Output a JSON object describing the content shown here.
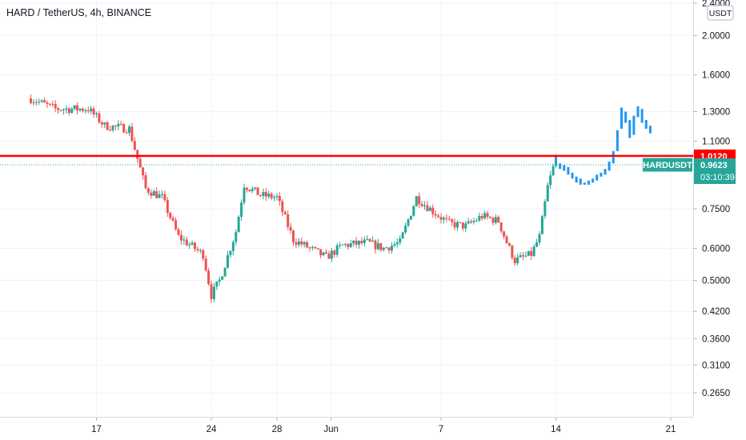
{
  "header": {
    "title": "HARD / TetherUS, 4h, BINANCE"
  },
  "colors": {
    "up": "#26a69a",
    "down": "#ef5350",
    "projection": "#2196f3",
    "line": "#ff0000",
    "grid": "#f0f3fa"
  },
  "chart_data": {
    "type": "candlestick",
    "symbol": "HARDUSDT",
    "currency": "USDT",
    "y_scale": "log",
    "ylim": [
      0.24,
      2.45
    ],
    "y_ticks": [
      {
        "value": 2.4,
        "label": "2.4000"
      },
      {
        "value": 2.0,
        "label": "2.0000"
      },
      {
        "value": 1.6,
        "label": "1.6000"
      },
      {
        "value": 1.3,
        "label": "1.3000"
      },
      {
        "value": 1.1,
        "label": "1.1000"
      },
      {
        "value": 0.75,
        "label": "0.7500"
      },
      {
        "value": 0.6,
        "label": "0.6000"
      },
      {
        "value": 0.5,
        "label": "0.5000"
      },
      {
        "value": 0.42,
        "label": "0.4200"
      },
      {
        "value": 0.36,
        "label": "0.3600"
      },
      {
        "value": 0.31,
        "label": "0.3100"
      },
      {
        "value": 0.265,
        "label": "0.2650"
      }
    ],
    "x_ticks": [
      "17",
      "24",
      "28",
      "Jun",
      "7",
      "14",
      "21"
    ],
    "horizontal_line": {
      "value": 1.012,
      "label": "1.0120"
    },
    "last_price": {
      "value": 0.9623,
      "label": "0.9623",
      "symbol_label": "HARDUSDT",
      "countdown": "03:10:39"
    },
    "anchors": [
      {
        "day": 13.0,
        "price": 1.4
      },
      {
        "day": 14.5,
        "price": 1.32
      },
      {
        "day": 16.5,
        "price": 1.32
      },
      {
        "day": 17.5,
        "price": 1.2
      },
      {
        "day": 19.0,
        "price": 1.18
      },
      {
        "day": 20.0,
        "price": 0.84
      },
      {
        "day": 21.0,
        "price": 0.8
      },
      {
        "day": 22.0,
        "price": 0.64
      },
      {
        "day": 23.5,
        "price": 0.58
      },
      {
        "day": 24.0,
        "price": 0.46
      },
      {
        "day": 24.5,
        "price": 0.5
      },
      {
        "day": 25.5,
        "price": 0.66
      },
      {
        "day": 26.0,
        "price": 0.86
      },
      {
        "day": 27.0,
        "price": 0.81
      },
      {
        "day": 28.0,
        "price": 0.8
      },
      {
        "day": 29.0,
        "price": 0.63
      },
      {
        "day": 30.0,
        "price": 0.6
      },
      {
        "day": 31.0,
        "price": 0.57
      },
      {
        "day": 32.0,
        "price": 0.61
      },
      {
        "day": 33.5,
        "price": 0.62
      },
      {
        "day": 34.5,
        "price": 0.6
      },
      {
        "day": 35.5,
        "price": 0.62
      },
      {
        "day": 36.5,
        "price": 0.8
      },
      {
        "day": 37.5,
        "price": 0.74
      },
      {
        "day": 38.5,
        "price": 0.69
      },
      {
        "day": 39.5,
        "price": 0.68
      },
      {
        "day": 40.5,
        "price": 0.72
      },
      {
        "day": 41.5,
        "price": 0.7
      },
      {
        "day": 42.0,
        "price": 0.62
      },
      {
        "day": 42.5,
        "price": 0.56
      },
      {
        "day": 43.5,
        "price": 0.58
      },
      {
        "day": 44.0,
        "price": 0.64
      },
      {
        "day": 44.5,
        "price": 0.85
      },
      {
        "day": 45.0,
        "price": 1.0
      }
    ],
    "projection": [
      {
        "day": 45.0,
        "open": 1.0,
        "close": 0.97
      },
      {
        "day": 45.25,
        "open": 0.97,
        "close": 0.94
      },
      {
        "day": 45.5,
        "open": 0.96,
        "close": 0.93
      },
      {
        "day": 45.75,
        "open": 0.95,
        "close": 0.91
      },
      {
        "day": 46.0,
        "open": 0.92,
        "close": 0.89
      },
      {
        "day": 46.25,
        "open": 0.9,
        "close": 0.87
      },
      {
        "day": 46.5,
        "open": 0.89,
        "close": 0.86
      },
      {
        "day": 46.75,
        "open": 0.87,
        "close": 0.86
      },
      {
        "day": 47.0,
        "open": 0.86,
        "close": 0.88
      },
      {
        "day": 47.25,
        "open": 0.87,
        "close": 0.89
      },
      {
        "day": 47.5,
        "open": 0.88,
        "close": 0.91
      },
      {
        "day": 47.75,
        "open": 0.9,
        "close": 0.92
      },
      {
        "day": 48.0,
        "open": 0.91,
        "close": 0.94
      },
      {
        "day": 48.25,
        "open": 0.93,
        "close": 0.98
      },
      {
        "day": 48.5,
        "open": 0.97,
        "close": 1.04
      },
      {
        "day": 48.75,
        "open": 1.04,
        "close": 1.17
      },
      {
        "day": 49.0,
        "open": 1.18,
        "close": 1.33
      },
      {
        "day": 49.25,
        "open": 1.3,
        "close": 1.22
      },
      {
        "day": 49.5,
        "open": 1.24,
        "close": 1.12
      },
      {
        "day": 49.75,
        "open": 1.14,
        "close": 1.27
      },
      {
        "day": 50.0,
        "open": 1.26,
        "close": 1.34
      },
      {
        "day": 50.25,
        "open": 1.32,
        "close": 1.22
      },
      {
        "day": 50.5,
        "open": 1.24,
        "close": 1.18
      },
      {
        "day": 50.75,
        "open": 1.2,
        "close": 1.15
      }
    ]
  }
}
